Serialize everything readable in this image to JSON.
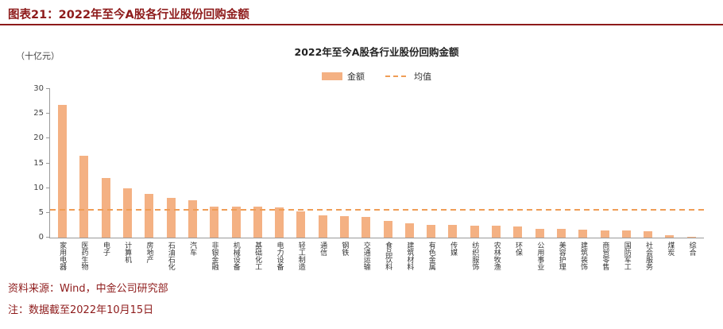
{
  "header": {
    "title": "图表21：2022年至今A股各行业股份回购金额"
  },
  "colors": {
    "accent_red": "#8E1B1B",
    "bar_orange": "#F4B183",
    "mean_line_orange": "#EF9D56"
  },
  "chart_data": {
    "type": "bar",
    "title": "2022年至今A股各行业股份回购金额",
    "unit_label": "（十亿元）",
    "legend": [
      {
        "label": "金额",
        "style": "bar",
        "color": "#F4B183"
      },
      {
        "label": "均值",
        "style": "dashed-line",
        "color": "#EF9D56"
      }
    ],
    "legend_position": "top",
    "grid": false,
    "ylim": [
      0,
      30
    ],
    "yticks": [
      0,
      5,
      10,
      15,
      20,
      25,
      30
    ],
    "mean_value": 5.4,
    "categories": [
      "家用电器",
      "医药生物",
      "电子",
      "计算机",
      "房地产",
      "石油石化",
      "汽车",
      "非银金融",
      "机械设备",
      "基础化工",
      "电力设备",
      "轻工制造",
      "通信",
      "钢铁",
      "交通运输",
      "食品饮料",
      "建筑材料",
      "有色金属",
      "传媒",
      "纺织服饰",
      "农林牧渔",
      "环保",
      "公用事业",
      "美容护理",
      "建筑装饰",
      "商贸零售",
      "国防军工",
      "社会服务",
      "煤炭",
      "综合"
    ],
    "values": [
      26.8,
      16.5,
      12.1,
      10.0,
      8.8,
      8.0,
      7.5,
      6.3,
      6.3,
      6.2,
      6.1,
      5.3,
      4.5,
      4.4,
      4.2,
      3.3,
      2.9,
      2.6,
      2.5,
      2.4,
      2.4,
      2.3,
      1.8,
      1.7,
      1.6,
      1.5,
      1.4,
      1.3,
      0.5,
      0.2
    ]
  },
  "footer": {
    "source": "资料来源：Wind，中金公司研究部",
    "note": "注：数据截至2022年10月15日"
  }
}
